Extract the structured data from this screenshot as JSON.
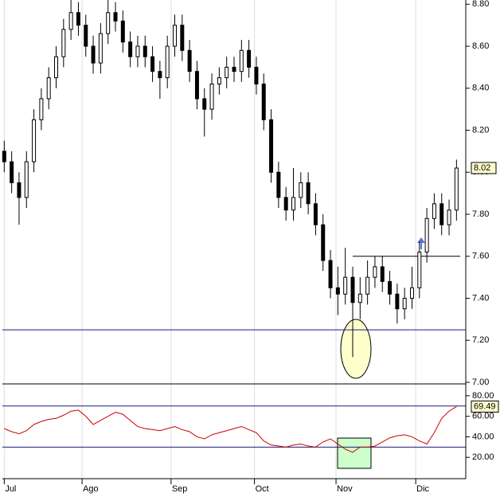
{
  "chart_data": {
    "type": "candlestick",
    "xlim": [
      -0.5,
      124.5
    ],
    "xticks": [
      {
        "value": 0,
        "label": "Jul"
      },
      {
        "value": 21,
        "label": "Ago"
      },
      {
        "value": 45,
        "label": "Sep"
      },
      {
        "value": 67.5,
        "label": "Oct"
      },
      {
        "value": 89.5,
        "label": "Nov"
      },
      {
        "value": 111,
        "label": "Dic"
      }
    ],
    "ylim": [
      7.0,
      8.82
    ],
    "yticks": [
      {
        "value": 7.0,
        "label": "7.00"
      },
      {
        "value": 7.2,
        "label": "7.20"
      },
      {
        "value": 7.4,
        "label": "7.40"
      },
      {
        "value": 7.6,
        "label": "7.60"
      },
      {
        "value": 7.8,
        "label": "7.80"
      },
      {
        "value": 8.0,
        "label": "8.00"
      },
      {
        "value": 8.2,
        "label": "8.20"
      },
      {
        "value": 8.4,
        "label": "8.40"
      },
      {
        "value": 8.6,
        "label": "8.60"
      },
      {
        "value": 8.8,
        "label": "8.80"
      }
    ],
    "x": [
      0,
      2,
      4,
      6,
      8,
      10,
      12,
      14,
      16,
      18,
      20,
      22,
      24,
      26,
      28,
      30,
      32,
      34,
      36,
      38,
      40,
      42,
      44,
      46,
      48,
      50,
      52,
      54,
      56,
      58,
      60,
      62,
      64,
      66,
      68,
      70,
      72,
      74,
      76,
      78,
      80,
      82,
      84,
      86,
      88,
      90,
      92,
      94,
      96,
      98,
      100,
      102,
      104,
      106,
      108,
      110,
      112,
      114,
      116,
      118,
      120,
      122
    ],
    "open": [
      8.1,
      8.05,
      7.95,
      7.88,
      8.05,
      8.25,
      8.35,
      8.45,
      8.55,
      8.68,
      8.76,
      8.7,
      8.6,
      8.52,
      8.66,
      8.76,
      8.72,
      8.62,
      8.55,
      8.6,
      8.55,
      8.48,
      8.45,
      8.6,
      8.7,
      8.58,
      8.48,
      8.35,
      8.3,
      8.42,
      8.45,
      8.5,
      8.48,
      8.58,
      8.5,
      8.42,
      8.25,
      8.0,
      7.88,
      7.82,
      7.88,
      7.95,
      7.85,
      7.75,
      7.58,
      7.45,
      7.42,
      7.5,
      7.38,
      7.42,
      7.5,
      7.55,
      7.48,
      7.42,
      7.35,
      7.4,
      7.45,
      7.62,
      7.78,
      7.85,
      7.75,
      7.82
    ],
    "high": [
      8.15,
      8.1,
      8.0,
      8.1,
      8.3,
      8.4,
      8.5,
      8.6,
      8.73,
      8.82,
      8.81,
      8.75,
      8.65,
      8.71,
      8.82,
      8.81,
      8.77,
      8.67,
      8.65,
      8.65,
      8.6,
      8.53,
      8.65,
      8.75,
      8.75,
      8.63,
      8.53,
      8.4,
      8.47,
      8.5,
      8.55,
      8.55,
      8.63,
      8.63,
      8.55,
      8.47,
      8.3,
      8.05,
      7.93,
      8.02,
      8.0,
      8.0,
      7.9,
      7.8,
      7.63,
      7.55,
      7.64,
      7.55,
      7.5,
      7.58,
      7.6,
      7.6,
      7.53,
      7.47,
      7.45,
      7.55,
      7.67,
      7.83,
      7.9,
      7.9,
      7.87,
      8.06
    ],
    "low": [
      8.0,
      7.9,
      7.75,
      7.83,
      8.0,
      8.2,
      8.3,
      8.4,
      8.5,
      8.63,
      8.65,
      8.55,
      8.47,
      8.47,
      8.61,
      8.67,
      8.57,
      8.5,
      8.5,
      8.5,
      8.43,
      8.35,
      8.4,
      8.55,
      8.53,
      8.43,
      8.3,
      8.17,
      8.25,
      8.37,
      8.4,
      8.43,
      8.43,
      8.45,
      8.37,
      8.2,
      7.95,
      7.83,
      7.77,
      7.77,
      7.83,
      7.8,
      7.7,
      7.53,
      7.4,
      7.32,
      7.37,
      7.12,
      7.3,
      7.37,
      7.45,
      7.43,
      7.37,
      7.28,
      7.3,
      7.35,
      7.4,
      7.57,
      7.73,
      7.7,
      7.7,
      7.77
    ],
    "close": [
      8.05,
      7.95,
      7.88,
      8.05,
      8.25,
      8.35,
      8.45,
      8.55,
      8.68,
      8.76,
      8.7,
      8.6,
      8.52,
      8.66,
      8.76,
      8.72,
      8.62,
      8.55,
      8.6,
      8.55,
      8.48,
      8.45,
      8.6,
      8.7,
      8.58,
      8.48,
      8.35,
      8.3,
      8.42,
      8.45,
      8.5,
      8.48,
      8.58,
      8.5,
      8.42,
      8.25,
      8.0,
      7.88,
      7.82,
      7.88,
      7.95,
      7.85,
      7.75,
      7.58,
      7.45,
      7.42,
      7.5,
      7.38,
      7.42,
      7.5,
      7.55,
      7.48,
      7.42,
      7.35,
      7.4,
      7.45,
      7.62,
      7.78,
      7.85,
      7.75,
      7.82,
      8.02
    ],
    "levels": [
      {
        "value": 7.25
      },
      {
        "value": 7.6,
        "x": [
          94,
          123
        ]
      }
    ],
    "rsi_ylim": [
      0,
      90
    ],
    "rsi_yticks": [
      {
        "value": 20,
        "label": "20.00"
      },
      {
        "value": 40,
        "label": "40.00"
      },
      {
        "value": 60,
        "label": "60.00"
      },
      {
        "value": 80,
        "label": "80.00"
      }
    ],
    "rsi_levels": [
      70,
      30
    ],
    "rsi_color": "#cc0000",
    "rsi": [
      48,
      45,
      43,
      46,
      52,
      55,
      57,
      58,
      61,
      65,
      66,
      60,
      52,
      56,
      60,
      64,
      62,
      56,
      50,
      48,
      47,
      46,
      48,
      50,
      47,
      45,
      40,
      38,
      42,
      44,
      46,
      48,
      50,
      47,
      44,
      36,
      32,
      31,
      30,
      32,
      33,
      31,
      30,
      35,
      38,
      33,
      28,
      25,
      30,
      30,
      31,
      35,
      39,
      41,
      42,
      40,
      36,
      33,
      44,
      58,
      65,
      69.49
    ]
  }
}
